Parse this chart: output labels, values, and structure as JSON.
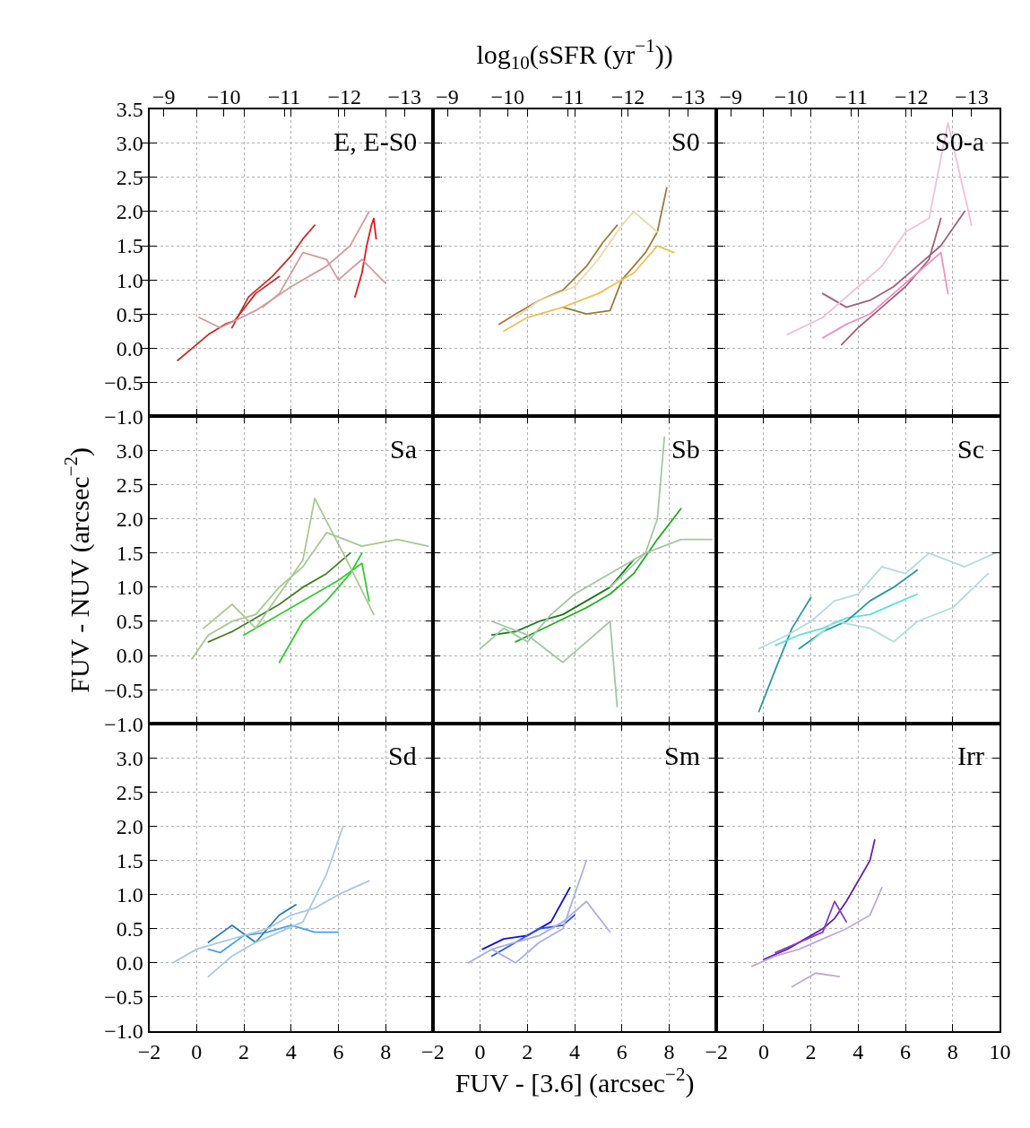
{
  "chart_data": [
    {
      "type": "line",
      "title": "E, E-S0",
      "xlim": [
        -2,
        10
      ],
      "ylim": [
        -1,
        3.5
      ],
      "x2lim": [
        -8.76,
        -13.47
      ],
      "grid": true,
      "tick_labels": "y",
      "xticks": [
        -2,
        0,
        2,
        4,
        6,
        8,
        10
      ],
      "yticks": [
        {
          "value": -1,
          "label": "−1.0"
        },
        {
          "value": -0.5,
          "label": "−0.5"
        },
        {
          "value": 0,
          "label": "0.0"
        },
        {
          "value": 0.5,
          "label": "0.5"
        },
        {
          "value": 1,
          "label": "1.0"
        },
        {
          "value": 1.5,
          "label": "1.5"
        },
        {
          "value": 2,
          "label": "2.0"
        },
        {
          "value": 2.5,
          "label": "2.5"
        },
        {
          "value": 3,
          "label": "3.0"
        },
        {
          "value": 3.5,
          "label": "3.5"
        }
      ],
      "x2ticks": [
        {
          "value": -9,
          "label": "−9"
        },
        {
          "value": -10,
          "label": "−10"
        },
        {
          "value": -11,
          "label": "−11"
        },
        {
          "value": -12,
          "label": "−12"
        },
        {
          "value": -13,
          "label": "−13"
        }
      ],
      "series": [
        {
          "color": "#c0302b",
          "x": [
            -0.8,
            0.5,
            1.2,
            1.6,
            2.5,
            3.5
          ],
          "values": [
            -0.18,
            0.2,
            0.35,
            0.4,
            0.8,
            1.05
          ]
        },
        {
          "color": "#c0302b",
          "x": [
            1.5,
            2.2,
            3.2,
            4.0,
            4.5,
            5.0
          ],
          "values": [
            0.3,
            0.75,
            1.05,
            1.35,
            1.6,
            1.8
          ]
        },
        {
          "color": "#e31a1c",
          "x": [
            6.7,
            7.0,
            7.2,
            7.4,
            7.5,
            7.6
          ],
          "values": [
            0.75,
            1.1,
            1.5,
            1.8,
            1.9,
            1.6
          ]
        },
        {
          "color": "#d49a9a",
          "x": [
            0.1,
            1.0,
            2.5,
            4.0,
            5.5,
            6.5,
            7.3
          ],
          "values": [
            0.45,
            0.3,
            0.55,
            0.9,
            1.2,
            1.5,
            2.0
          ]
        },
        {
          "color": "#d49a9a",
          "x": [
            2.8,
            3.5,
            4.5,
            5.5,
            6.0,
            7.0,
            8.0
          ],
          "values": [
            0.6,
            0.8,
            1.4,
            1.3,
            1.0,
            1.3,
            0.95
          ]
        }
      ]
    },
    {
      "type": "line",
      "title": "S0",
      "xlim": [
        -2,
        10
      ],
      "ylim": [
        -1,
        3.5
      ],
      "x2lim": [
        -8.76,
        -13.47
      ],
      "grid": true,
      "tick_labels": false,
      "x2label": "log$_{10}$(sSFR (yr$^{−1}$))",
      "xticks": [
        -2,
        0,
        2,
        4,
        6,
        8,
        10
      ],
      "yticks": [
        -1,
        -0.5,
        0,
        0.5,
        1,
        1.5,
        2,
        2.5,
        3,
        3.5
      ],
      "x2ticks": [
        {
          "value": -9,
          "label": "−9"
        },
        {
          "value": -10,
          "label": "−10"
        },
        {
          "value": -11,
          "label": "−11"
        },
        {
          "value": -12,
          "label": "−12"
        },
        {
          "value": -13,
          "label": "−13"
        }
      ],
      "series": [
        {
          "color": "#a0783c",
          "x": [
            0.8,
            1.5,
            2.5,
            3.5,
            4.5,
            5.2,
            5.8
          ],
          "values": [
            0.35,
            0.5,
            0.7,
            0.85,
            1.2,
            1.55,
            1.8
          ]
        },
        {
          "color": "#a0783c",
          "x": [
            3.5,
            4.5,
            5.5,
            6.0,
            7.0,
            7.5,
            7.9
          ],
          "values": [
            0.6,
            0.5,
            0.55,
            1.0,
            1.4,
            1.7,
            2.35
          ]
        },
        {
          "color": "#f0c050",
          "x": [
            1,
            2,
            3.5,
            5,
            6.5,
            7.5,
            8.2
          ],
          "values": [
            0.25,
            0.45,
            0.6,
            0.8,
            1.1,
            1.5,
            1.4
          ]
        },
        {
          "color": "#ead9a8",
          "x": [
            1.5,
            2.5,
            4,
            5,
            6,
            6.5,
            7.5
          ],
          "values": [
            0.45,
            0.7,
            0.9,
            1.3,
            1.8,
            2.0,
            1.7
          ]
        }
      ]
    },
    {
      "type": "line",
      "title": "S0-a",
      "xlim": [
        -2,
        10
      ],
      "ylim": [
        -1,
        3.5
      ],
      "x2lim": [
        -8.76,
        -13.47
      ],
      "grid": true,
      "tick_labels": false,
      "xticks": [
        -2,
        0,
        2,
        4,
        6,
        8,
        10
      ],
      "yticks": [
        -1,
        -0.5,
        0,
        0.5,
        1,
        1.5,
        2,
        2.5,
        3,
        3.5
      ],
      "x2ticks": [
        {
          "value": -9,
          "label": "−9"
        },
        {
          "value": -10,
          "label": "−10"
        },
        {
          "value": -11,
          "label": "−11"
        },
        {
          "value": -12,
          "label": "−12"
        },
        {
          "value": -13,
          "label": "−13"
        }
      ],
      "series": [
        {
          "color": "#a0607a",
          "x": [
            2.5,
            3.5,
            4.5,
            5.5,
            6.5,
            7.5,
            8.5
          ],
          "values": [
            0.8,
            0.6,
            0.7,
            0.9,
            1.2,
            1.5,
            2.0
          ]
        },
        {
          "color": "#a0607a",
          "x": [
            3.3,
            4,
            5,
            6,
            7,
            7.5
          ],
          "values": [
            0.05,
            0.3,
            0.6,
            0.9,
            1.3,
            1.9
          ]
        },
        {
          "color": "#f090c0",
          "x": [
            2.5,
            3.5,
            4.5,
            5.5,
            6.5,
            7.5,
            7.8
          ],
          "values": [
            0.15,
            0.35,
            0.5,
            0.8,
            1.1,
            1.4,
            0.8
          ]
        },
        {
          "color": "#f0c0d8",
          "x": [
            1.0,
            2.5,
            4,
            5,
            6,
            7,
            7.8,
            8.8
          ],
          "values": [
            0.2,
            0.45,
            0.9,
            1.2,
            1.7,
            1.9,
            3.3,
            1.8
          ]
        }
      ]
    },
    {
      "type": "line",
      "title": "Sa",
      "xlim": [
        -2,
        10
      ],
      "ylim": [
        -1,
        3.5
      ],
      "grid": true,
      "tick_labels": "y",
      "ylabel": "FUV - NUV (arcsec$^{−2}$)",
      "xticks": [
        -2,
        0,
        2,
        4,
        6,
        8,
        10
      ],
      "yticks": [
        {
          "value": -1,
          "label": "−1.0"
        },
        {
          "value": -0.5,
          "label": "−0.5"
        },
        {
          "value": 0,
          "label": "0.0"
        },
        {
          "value": 0.5,
          "label": "0.5"
        },
        {
          "value": 1,
          "label": "1.0"
        },
        {
          "value": 1.5,
          "label": "1.5"
        },
        {
          "value": 2,
          "label": "2.0"
        },
        {
          "value": 2.5,
          "label": "2.5"
        },
        {
          "value": 3,
          "label": "3.0"
        },
        {
          "value": 3.5,
          "label": null
        }
      ],
      "series": [
        {
          "color": "#4a7a2a",
          "x": [
            0.5,
            1.5,
            2.5,
            3.5,
            4.5,
            5.5,
            6.5
          ],
          "values": [
            0.2,
            0.35,
            0.55,
            0.75,
            1.0,
            1.2,
            1.5
          ]
        },
        {
          "color": "#33cc33",
          "x": [
            2.0,
            3.0,
            4.0,
            5.0,
            6.0,
            7.0,
            7.3
          ],
          "values": [
            0.3,
            0.5,
            0.7,
            0.9,
            1.1,
            1.35,
            0.8
          ]
        },
        {
          "color": "#33cc33",
          "x": [
            3.5,
            4.5,
            5.5,
            6.5,
            7.0
          ],
          "values": [
            -0.1,
            0.5,
            0.8,
            1.2,
            1.5
          ]
        },
        {
          "color": "#a8c890",
          "x": [
            -0.2,
            0.5,
            1.5,
            2.5,
            3.5,
            4.5,
            5.5,
            7.0,
            8.5,
            9.8
          ],
          "values": [
            -0.05,
            0.3,
            0.5,
            0.6,
            1.0,
            1.3,
            1.8,
            1.6,
            1.7,
            1.6
          ]
        },
        {
          "color": "#a8c890",
          "x": [
            0.3,
            1.5,
            2.5,
            3.5,
            4.5,
            5,
            6.5,
            7.5
          ],
          "values": [
            0.4,
            0.75,
            0.4,
            0.9,
            1.4,
            2.3,
            1.3,
            0.6
          ]
        }
      ]
    },
    {
      "type": "line",
      "title": "Sb",
      "xlim": [
        -2,
        10
      ],
      "ylim": [
        -1,
        3.5
      ],
      "grid": true,
      "tick_labels": false,
      "xticks": [
        -2,
        0,
        2,
        4,
        6,
        8,
        10
      ],
      "yticks": [
        -1,
        -0.5,
        0,
        0.5,
        1,
        1.5,
        2,
        2.5,
        3,
        3.5
      ],
      "series": [
        {
          "color": "#1a7a1a",
          "x": [
            0.5,
            1.5,
            2.5,
            3.5,
            4.5,
            5.5,
            6.5
          ],
          "values": [
            0.3,
            0.35,
            0.5,
            0.6,
            0.8,
            1.0,
            1.4
          ]
        },
        {
          "color": "#22aa22",
          "x": [
            1.5,
            3,
            4.5,
            5.5,
            6.5,
            7.5,
            8.5
          ],
          "values": [
            0.2,
            0.45,
            0.7,
            0.9,
            1.2,
            1.7,
            2.15
          ]
        },
        {
          "color": "#a0c8a0",
          "x": [
            0,
            1,
            2,
            3,
            4,
            5,
            6,
            7,
            8.5,
            9.8
          ],
          "values": [
            0.1,
            0.4,
            0.2,
            0.6,
            0.9,
            1.1,
            1.3,
            1.5,
            1.7,
            1.7
          ]
        },
        {
          "color": "#a0c8a0",
          "x": [
            0.5,
            2,
            3.5,
            4.5,
            5.5,
            5.8
          ],
          "values": [
            0.5,
            0.3,
            -0.1,
            0.2,
            0.5,
            -0.75
          ]
        },
        {
          "color": "#a0c8a0",
          "x": [
            5.5,
            7,
            7.5,
            7.8
          ],
          "values": [
            1.0,
            1.5,
            2.0,
            3.2
          ]
        }
      ]
    },
    {
      "type": "line",
      "title": "Sc",
      "xlim": [
        -2,
        10
      ],
      "ylim": [
        -1,
        3.5
      ],
      "grid": true,
      "tick_labels": false,
      "xticks": [
        -2,
        0,
        2,
        4,
        6,
        8,
        10
      ],
      "yticks": [
        -1,
        -0.5,
        0,
        0.5,
        1,
        1.5,
        2,
        2.5,
        3,
        3.5
      ],
      "series": [
        {
          "color": "#2a9a9a",
          "x": [
            -0.2,
            0.5,
            1.2,
            2.0
          ],
          "values": [
            -0.82,
            -0.2,
            0.4,
            0.85
          ]
        },
        {
          "color": "#60e0e0",
          "x": [
            0.5,
            1.5,
            2.5,
            3.5,
            4.5,
            5.5,
            6.5
          ],
          "values": [
            0.15,
            0.3,
            0.4,
            0.55,
            0.6,
            0.75,
            0.9
          ]
        },
        {
          "color": "#2a9a9a",
          "x": [
            1.5,
            2.5,
            3.5,
            4.5,
            5.5,
            6.5
          ],
          "values": [
            0.1,
            0.35,
            0.5,
            0.8,
            1.0,
            1.25
          ]
        },
        {
          "color": "#b0dcdc",
          "x": [
            -0.2,
            1,
            2,
            3,
            4,
            5,
            6,
            7,
            8.5,
            9.8
          ],
          "values": [
            0.1,
            0.3,
            0.5,
            0.8,
            0.9,
            1.3,
            1.2,
            1.5,
            1.3,
            1.5
          ]
        },
        {
          "color": "#b0dcdc",
          "x": [
            2,
            3,
            4.5,
            5.5,
            6.5,
            8,
            9.5
          ],
          "values": [
            0.2,
            0.5,
            0.4,
            0.2,
            0.5,
            0.7,
            1.2
          ]
        }
      ]
    },
    {
      "type": "line",
      "title": "Sd",
      "xlim": [
        -2,
        10
      ],
      "ylim": [
        -1,
        3.5
      ],
      "grid": true,
      "xticks": [
        {
          "value": -2,
          "label": "−2"
        },
        {
          "value": 0,
          "label": "0"
        },
        {
          "value": 2,
          "label": "2"
        },
        {
          "value": 4,
          "label": "4"
        },
        {
          "value": 6,
          "label": "6"
        },
        {
          "value": 8,
          "label": "8"
        },
        {
          "value": 10,
          "label": null
        }
      ],
      "yticks": [
        {
          "value": -1,
          "label": "−1.0"
        },
        {
          "value": -0.5,
          "label": "−0.5"
        },
        {
          "value": 0,
          "label": "0.0"
        },
        {
          "value": 0.5,
          "label": "0.5"
        },
        {
          "value": 1,
          "label": "1.0"
        },
        {
          "value": 1.5,
          "label": "1.5"
        },
        {
          "value": 2,
          "label": "2.0"
        },
        {
          "value": 2.5,
          "label": "2.5"
        },
        {
          "value": 3,
          "label": "3.0"
        },
        {
          "value": 3.5,
          "label": null
        }
      ],
      "series": [
        {
          "color": "#4aa0e8",
          "x": [
            0.5,
            1,
            2,
            3,
            4,
            5,
            6
          ],
          "values": [
            0.2,
            0.15,
            0.4,
            0.45,
            0.55,
            0.45,
            0.45
          ]
        },
        {
          "color": "#2a7ab0",
          "x": [
            0.5,
            1.5,
            2.5,
            3.5,
            4.2
          ],
          "values": [
            0.3,
            0.55,
            0.3,
            0.7,
            0.85
          ]
        },
        {
          "color": "#a8c8e0",
          "x": [
            -1,
            0,
            1,
            2,
            3,
            4,
            5,
            6,
            7.3
          ],
          "values": [
            0.0,
            0.2,
            0.3,
            0.4,
            0.5,
            0.7,
            0.8,
            1.0,
            1.2
          ]
        },
        {
          "color": "#a8c8e0",
          "x": [
            0.5,
            1.5,
            2.5,
            3.5,
            4.5,
            5.5,
            6.2
          ],
          "values": [
            -0.2,
            0.1,
            0.3,
            0.45,
            0.6,
            1.3,
            2.0
          ]
        }
      ]
    },
    {
      "type": "line",
      "title": "Sm",
      "xlim": [
        -2,
        10
      ],
      "ylim": [
        -1,
        3.5
      ],
      "grid": true,
      "tick_labels": "x",
      "xlabel": "FUV - [3.6] (arcsec$^{−2}$)",
      "xticks": [
        {
          "value": -2,
          "label": "−2"
        },
        {
          "value": 0,
          "label": "0"
        },
        {
          "value": 2,
          "label": "2"
        },
        {
          "value": 4,
          "label": "4"
        },
        {
          "value": 6,
          "label": "6"
        },
        {
          "value": 8,
          "label": "8"
        },
        {
          "value": 10,
          "label": null
        }
      ],
      "yticks": [
        -1,
        -0.5,
        0,
        0.5,
        1,
        1.5,
        2,
        2.5,
        3,
        3.5
      ],
      "series": [
        {
          "color": "#1010d0",
          "x": [
            0.1,
            1,
            2,
            3,
            3.8
          ],
          "values": [
            0.2,
            0.35,
            0.4,
            0.6,
            1.1
          ]
        },
        {
          "color": "#3050f0",
          "x": [
            0.5,
            1.5,
            2.5,
            3.5,
            4.0
          ],
          "values": [
            0.1,
            0.3,
            0.5,
            0.55,
            0.7
          ]
        },
        {
          "color": "#a8b0e0",
          "x": [
            -0.5,
            0.5,
            1.5,
            2.5,
            3.5,
            4.5,
            5.5
          ],
          "values": [
            0.0,
            0.2,
            0.3,
            0.4,
            0.6,
            0.9,
            0.45
          ]
        },
        {
          "color": "#a8b0e0",
          "x": [
            0.5,
            1.5,
            2.5,
            3.5,
            4.5
          ],
          "values": [
            0.2,
            0.0,
            0.3,
            0.5,
            1.5
          ]
        }
      ]
    },
    {
      "type": "line",
      "title": "Irr",
      "xlim": [
        -2,
        10
      ],
      "ylim": [
        -1,
        3.5
      ],
      "grid": true,
      "tick_labels": "x",
      "xticks": [
        {
          "value": -2,
          "label": "−2"
        },
        {
          "value": 0,
          "label": "0"
        },
        {
          "value": 2,
          "label": "2"
        },
        {
          "value": 4,
          "label": "4"
        },
        {
          "value": 6,
          "label": "6"
        },
        {
          "value": 8,
          "label": "8"
        },
        {
          "value": 10,
          "label": "10"
        }
      ],
      "yticks": [
        -1,
        -0.5,
        0,
        0.5,
        1,
        1.5,
        2,
        2.5,
        3,
        3.5
      ],
      "series": [
        {
          "color": "#6020b0",
          "x": [
            0,
            1,
            2,
            2.5,
            3,
            3.5,
            4,
            4.5,
            4.7
          ],
          "values": [
            0.05,
            0.2,
            0.4,
            0.5,
            0.65,
            0.9,
            1.2,
            1.5,
            1.8
          ]
        },
        {
          "color": "#8040c0",
          "x": [
            0.5,
            1.5,
            2.5,
            3,
            3.5
          ],
          "values": [
            0.15,
            0.3,
            0.45,
            0.9,
            0.6
          ]
        },
        {
          "color": "#c0a8d8",
          "x": [
            -0.5,
            0.5,
            1.5,
            2.5,
            3.5,
            4.5,
            5.0
          ],
          "values": [
            -0.05,
            0.1,
            0.2,
            0.35,
            0.5,
            0.7,
            1.1
          ]
        },
        {
          "color": "#c0a8d8",
          "x": [
            1.2,
            2.2,
            3.2
          ],
          "values": [
            -0.35,
            -0.15,
            -0.2
          ]
        }
      ]
    }
  ]
}
